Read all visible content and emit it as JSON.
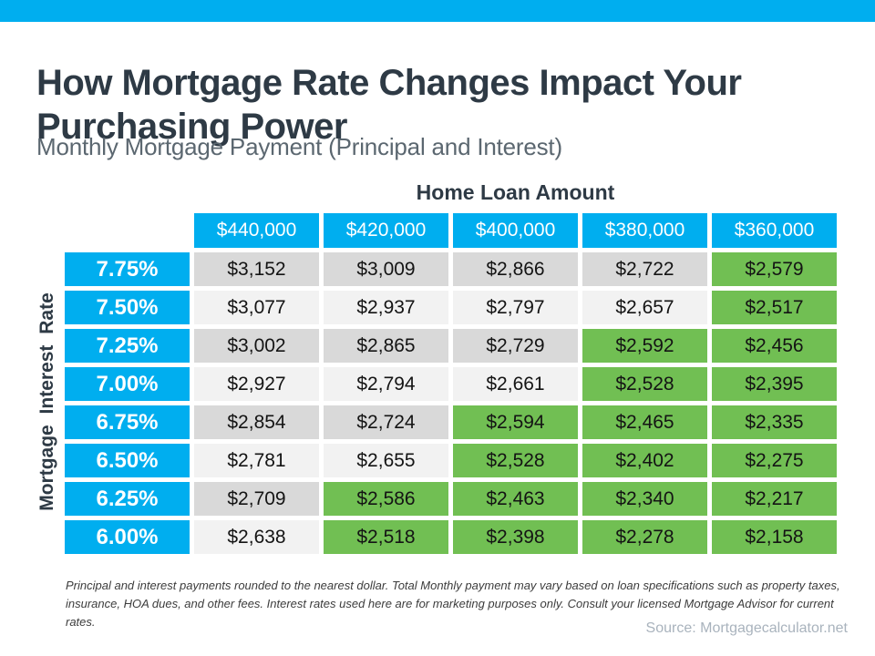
{
  "header": {
    "title_line1": "How Mortgage Rate Changes Impact Your",
    "title_line2": "Purchasing Power",
    "subtitle": "Monthly Mortgage Payment (Principal and Interest)"
  },
  "table": {
    "column_group_label": "Home Loan Amount",
    "row_group_label": "Mortgage Interest Rate",
    "columns": [
      "$440,000",
      "$420,000",
      "$400,000",
      "$380,000",
      "$360,000"
    ],
    "rows": [
      {
        "rate": "7.75%",
        "values": [
          "$3,152",
          "$3,009",
          "$2,866",
          "$2,722",
          "$2,579"
        ]
      },
      {
        "rate": "7.50%",
        "values": [
          "$3,077",
          "$2,937",
          "$2,797",
          "$2,657",
          "$2,517"
        ]
      },
      {
        "rate": "7.25%",
        "values": [
          "$3,002",
          "$2,865",
          "$2,729",
          "$2,592",
          "$2,456"
        ]
      },
      {
        "rate": "7.00%",
        "values": [
          "$2,927",
          "$2,794",
          "$2,661",
          "$2,528",
          "$2,395"
        ]
      },
      {
        "rate": "6.75%",
        "values": [
          "$2,854",
          "$2,724",
          "$2,594",
          "$2,465",
          "$2,335"
        ]
      },
      {
        "rate": "6.50%",
        "values": [
          "$2,781",
          "$2,655",
          "$2,528",
          "$2,402",
          "$2,275"
        ]
      },
      {
        "rate": "6.25%",
        "values": [
          "$2,709",
          "$2,586",
          "$2,463",
          "$2,340",
          "$2,217"
        ]
      },
      {
        "rate": "6.00%",
        "values": [
          "$2,638",
          "$2,518",
          "$2,398",
          "$2,278",
          "$2,158"
        ]
      }
    ]
  },
  "footer": {
    "footnote": "Principal and interest payments rounded to the nearest dollar. Total Monthly payment may vary based on loan specifications such as property taxes, insurance, HOA dues, and other fees. Interest rates used here are for marketing purposes only. Consult your licensed Mortgage Advisor for current rates.",
    "source": "Source: Mortgagecalculator.net"
  },
  "colors": {
    "accent_blue": "#00AEEF",
    "highlight_green": "#71BF53",
    "row_shade_dark": "#D9D9D9",
    "row_shade_light": "#F2F2F2",
    "title_text": "#2E3A45",
    "subtitle_text": "#5B6770",
    "source_text": "#A9B3BD"
  },
  "chart_data": {
    "type": "table",
    "title": "How Mortgage Rate Changes Impact Your Purchasing Power",
    "subtitle": "Monthly Mortgage Payment (Principal and Interest)",
    "columns_label": "Home Loan Amount",
    "rows_label": "Mortgage Interest Rate",
    "categories": [
      "$440,000",
      "$420,000",
      "$400,000",
      "$380,000",
      "$360,000"
    ],
    "row_labels": [
      "7.75%",
      "7.50%",
      "7.25%",
      "7.00%",
      "6.75%",
      "6.50%",
      "6.25%",
      "6.00%"
    ],
    "values": [
      [
        3152,
        3009,
        2866,
        2722,
        2579
      ],
      [
        3077,
        2937,
        2797,
        2657,
        2517
      ],
      [
        3002,
        2865,
        2729,
        2592,
        2456
      ],
      [
        2927,
        2794,
        2661,
        2528,
        2395
      ],
      [
        2854,
        2724,
        2594,
        2465,
        2335
      ],
      [
        2781,
        2655,
        2528,
        2402,
        2275
      ],
      [
        2709,
        2586,
        2463,
        2340,
        2217
      ],
      [
        2638,
        2518,
        2398,
        2278,
        2158
      ]
    ],
    "green_highlight": [
      [
        false,
        false,
        false,
        false,
        true
      ],
      [
        false,
        false,
        false,
        false,
        true
      ],
      [
        false,
        false,
        false,
        true,
        true
      ],
      [
        false,
        false,
        false,
        true,
        true
      ],
      [
        false,
        false,
        true,
        true,
        true
      ],
      [
        false,
        false,
        true,
        true,
        true
      ],
      [
        false,
        true,
        true,
        true,
        true
      ],
      [
        false,
        true,
        true,
        true,
        true
      ]
    ],
    "legend_position": "none",
    "grid": false
  }
}
